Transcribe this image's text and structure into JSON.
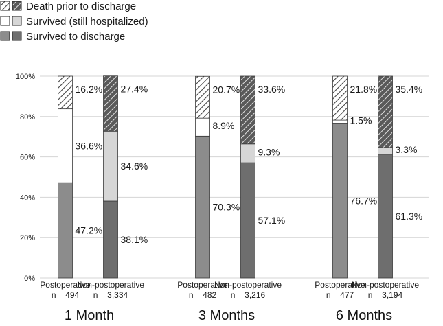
{
  "chart_data": {
    "type": "bar",
    "stacked": true,
    "percent_stacked": true,
    "title": "",
    "xlabel": "",
    "ylabel": "",
    "ylim": [
      0,
      100
    ],
    "yticks": [
      "0%",
      "20%",
      "40%",
      "60%",
      "80%",
      "100%"
    ],
    "grid": true,
    "legend_position": "top-left",
    "legend": [
      {
        "key": "death",
        "label": "Death prior to discharge"
      },
      {
        "key": "hosp",
        "label": "Survived (still hospitalized)"
      },
      {
        "key": "discharge",
        "label": "Survived to discharge"
      }
    ],
    "groups": [
      {
        "label": "1 Month",
        "bars": [
          {
            "category": "Postoperative",
            "n": "n = 494",
            "style": "postoperative",
            "values": {
              "discharge": 47.2,
              "hosp": 36.6,
              "death": 16.2
            },
            "labels": {
              "discharge": "47.2%",
              "hosp": "36.6%",
              "death": "16.2%"
            }
          },
          {
            "category": "Non-postoperative",
            "n": "n = 3,334",
            "style": "non-postoperative",
            "values": {
              "discharge": 38.1,
              "hosp": 34.6,
              "death": 27.4
            },
            "labels": {
              "discharge": "38.1%",
              "hosp": "34.6%",
              "death": "27.4%"
            }
          }
        ]
      },
      {
        "label": "3 Months",
        "bars": [
          {
            "category": "Postoperative",
            "n": "n = 482",
            "style": "postoperative",
            "values": {
              "discharge": 70.3,
              "hosp": 8.9,
              "death": 20.7
            },
            "labels": {
              "discharge": "70.3%",
              "hosp": "8.9%",
              "death": "20.7%"
            }
          },
          {
            "category": "Non-postoperative",
            "n": "n = 3,216",
            "style": "non-postoperative",
            "values": {
              "discharge": 57.1,
              "hosp": 9.3,
              "death": 33.6
            },
            "labels": {
              "discharge": "57.1%",
              "hosp": "9.3%",
              "death": "33.6%"
            }
          }
        ]
      },
      {
        "label": "6 Months",
        "bars": [
          {
            "category": "Postoperative",
            "n": "n = 477",
            "style": "postoperative",
            "values": {
              "discharge": 76.7,
              "hosp": 1.5,
              "death": 21.8
            },
            "labels": {
              "discharge": "76.7%",
              "hosp": "1.5%",
              "death": "21.8%"
            }
          },
          {
            "category": "Non-postoperative",
            "n": "n = 3,194",
            "style": "non-postoperative",
            "values": {
              "discharge": 61.3,
              "hosp": 3.3,
              "death": 35.4
            },
            "labels": {
              "discharge": "61.3%",
              "hosp": "3.3%",
              "death": "35.4%"
            }
          }
        ]
      }
    ],
    "colors": {
      "postoperative": {
        "discharge": "#8c8c8c",
        "hosp": "#ffffff",
        "death": "#ffffff",
        "hatch": "#444444"
      },
      "non-postoperative": {
        "discharge": "#6e6e6e",
        "hosp": "#d6d6d6",
        "death": "#5a5a5a",
        "hatch": "#f0f0f0"
      }
    }
  }
}
